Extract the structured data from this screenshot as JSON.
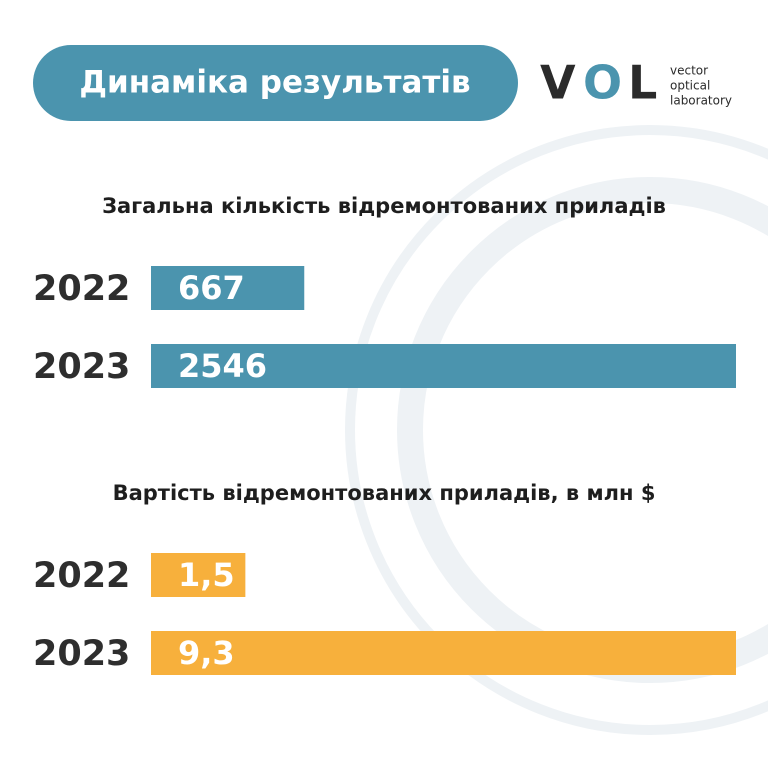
{
  "header": {
    "title": "Динаміка результатів"
  },
  "logo": {
    "letters": [
      "V",
      "O",
      "L"
    ],
    "tagline": [
      "vector",
      "optical",
      "laboratory"
    ]
  },
  "chart_data": [
    {
      "type": "bar",
      "orientation": "horizontal",
      "title": "Загальна кількість відремонтованих приладів",
      "categories": [
        "2022",
        "2023"
      ],
      "values": [
        667,
        2546
      ],
      "color": "#4b94ae"
    },
    {
      "type": "bar",
      "orientation": "horizontal",
      "title": "Вартість відремонтованих приладів, в млн $",
      "categories": [
        "2022",
        "2023"
      ],
      "values": [
        1.5,
        9.3
      ],
      "value_labels": [
        "1,5",
        "9,3"
      ],
      "color": "#f7b03c"
    }
  ]
}
